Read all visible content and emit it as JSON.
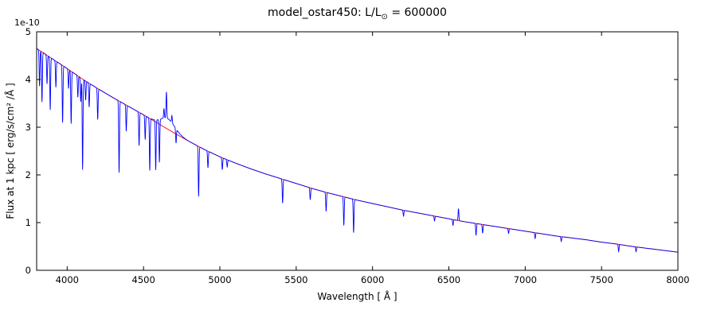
{
  "figure": {
    "title": {
      "prefix": "model_ostar450: L/L",
      "sub": "⊙",
      "suffix": " = 600000"
    },
    "xlabel": "Wavelength [ Å ]",
    "ylabel": "Flux at 1 kpc [ erg/s/cm² /Å ]",
    "offset_text": "1e-10"
  },
  "chart_data": {
    "type": "line",
    "title": "model_ostar450: L/L⊙ = 600000",
    "xlabel": "Wavelength [ Å ]",
    "ylabel": "Flux at 1 kpc [ erg/s/cm² /Å ]",
    "y_scale_factor": "1e-10",
    "xlim": [
      3800,
      8000
    ],
    "ylim": [
      0,
      5
    ],
    "xticks": [
      4000,
      4500,
      5000,
      5500,
      6000,
      6500,
      7000,
      7500,
      8000
    ],
    "yticks": [
      0,
      1,
      2,
      3,
      4,
      5
    ],
    "grid": false,
    "legend": null,
    "series": [
      {
        "name": "continuum-fit",
        "type": "smooth",
        "color": "#ff0000",
        "line_width": 0.9,
        "points_wavelength": [
          3800,
          3900,
          4000,
          4100,
          4200,
          4300,
          4400,
          4500,
          4600,
          4700,
          4800,
          4900,
          5000,
          5100,
          5200,
          5300,
          5400,
          5500,
          5600,
          5700,
          5800,
          5900,
          6000,
          6100,
          6200,
          6300,
          6400,
          6500,
          6600,
          6700,
          6800,
          6900,
          7000,
          7100,
          7200,
          7300,
          7400,
          7500,
          7600,
          7700,
          7800,
          7900,
          8000
        ],
        "points_flux": [
          4.65,
          4.44,
          4.23,
          4.01,
          3.81,
          3.62,
          3.44,
          3.26,
          3.07,
          2.88,
          2.7,
          2.53,
          2.38,
          2.25,
          2.13,
          2.02,
          1.92,
          1.82,
          1.72,
          1.63,
          1.55,
          1.47,
          1.4,
          1.33,
          1.26,
          1.2,
          1.14,
          1.08,
          1.02,
          0.97,
          0.92,
          0.87,
          0.82,
          0.77,
          0.72,
          0.68,
          0.64,
          0.59,
          0.55,
          0.5,
          0.46,
          0.42,
          0.38
        ]
      },
      {
        "name": "observed-spectrum",
        "type": "spectrum",
        "color": "#0000ff",
        "line_width": 0.9,
        "base": "continuum-fit",
        "broad_features": [
          {
            "center": 4660,
            "amplitude": 0.22,
            "sigma": 45
          }
        ],
        "narrow_features": [
          {
            "center": 3819,
            "amplitude": -0.75,
            "sigma": 2.5
          },
          {
            "center": 3835,
            "amplitude": -1.05,
            "sigma": 2.5
          },
          {
            "center": 3868,
            "amplitude": -0.6,
            "sigma": 2.5
          },
          {
            "center": 3889,
            "amplitude": -1.1,
            "sigma": 2.5
          },
          {
            "center": 3926,
            "amplitude": -0.55,
            "sigma": 2.5
          },
          {
            "center": 3970,
            "amplitude": -1.2,
            "sigma": 2.5
          },
          {
            "center": 4009,
            "amplitude": -0.4,
            "sigma": 2.5
          },
          {
            "center": 4026,
            "amplitude": -1.1,
            "sigma": 2.5
          },
          {
            "center": 4070,
            "amplitude": -0.45,
            "sigma": 2.5
          },
          {
            "center": 4089,
            "amplitude": -0.5,
            "sigma": 2.5
          },
          {
            "center": 4101,
            "amplitude": -1.9,
            "sigma": 2.5
          },
          {
            "center": 4121,
            "amplitude": -0.4,
            "sigma": 2.5
          },
          {
            "center": 4144,
            "amplitude": -0.5,
            "sigma": 2.5
          },
          {
            "center": 4200,
            "amplitude": -0.65,
            "sigma": 2.5
          },
          {
            "center": 4340,
            "amplitude": -1.5,
            "sigma": 2.5
          },
          {
            "center": 4387,
            "amplitude": -0.55,
            "sigma": 2.5
          },
          {
            "center": 4471,
            "amplitude": -0.7,
            "sigma": 2.5
          },
          {
            "center": 4511,
            "amplitude": -0.5,
            "sigma": 2.5
          },
          {
            "center": 4541,
            "amplitude": -1.1,
            "sigma": 2.5
          },
          {
            "center": 4580,
            "amplitude": -1.05,
            "sigma": 2.5
          },
          {
            "center": 4604,
            "amplitude": -0.9,
            "sigma": 2.5
          },
          {
            "center": 4634,
            "amplitude": 0.2,
            "sigma": 2.5
          },
          {
            "center": 4650,
            "amplitude": 0.55,
            "sigma": 2.5
          },
          {
            "center": 4686,
            "amplitude": 0.15,
            "sigma": 2.5
          },
          {
            "center": 4713,
            "amplitude": -0.3,
            "sigma": 2.5
          },
          {
            "center": 4861,
            "amplitude": -1.05,
            "sigma": 2.5
          },
          {
            "center": 4922,
            "amplitude": -0.35,
            "sigma": 2.5
          },
          {
            "center": 5016,
            "amplitude": -0.25,
            "sigma": 2.5
          },
          {
            "center": 5048,
            "amplitude": -0.15,
            "sigma": 2.5
          },
          {
            "center": 5411,
            "amplitude": -0.5,
            "sigma": 2.5
          },
          {
            "center": 5592,
            "amplitude": -0.25,
            "sigma": 2.5
          },
          {
            "center": 5696,
            "amplitude": -0.4,
            "sigma": 2.5
          },
          {
            "center": 5812,
            "amplitude": -0.6,
            "sigma": 2.5
          },
          {
            "center": 5876,
            "amplitude": -0.7,
            "sigma": 2.5
          },
          {
            "center": 6203,
            "amplitude": -0.12,
            "sigma": 2.5
          },
          {
            "center": 6406,
            "amplitude": -0.1,
            "sigma": 2.5
          },
          {
            "center": 6527,
            "amplitude": -0.12,
            "sigma": 2.5
          },
          {
            "center": 6563,
            "amplitude": 0.25,
            "sigma": 2.5
          },
          {
            "center": 6678,
            "amplitude": -0.25,
            "sigma": 2.5
          },
          {
            "center": 6721,
            "amplitude": -0.18,
            "sigma": 2.5
          },
          {
            "center": 6891,
            "amplitude": -0.1,
            "sigma": 2.5
          },
          {
            "center": 7065,
            "amplitude": -0.12,
            "sigma": 2.5
          },
          {
            "center": 7236,
            "amplitude": -0.1,
            "sigma": 2.5
          },
          {
            "center": 7612,
            "amplitude": -0.15,
            "sigma": 2.5
          },
          {
            "center": 7726,
            "amplitude": -0.1,
            "sigma": 2.5
          }
        ]
      }
    ]
  }
}
